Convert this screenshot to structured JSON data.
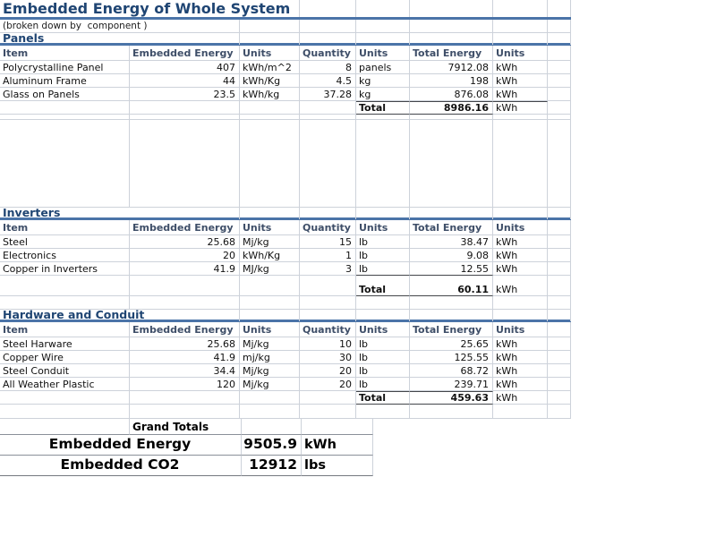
{
  "theme": {
    "title_color": "#1F4573",
    "accent_line_color": "#4B74A8",
    "header_text_color": "#3E4E68",
    "gridline_color": "#CDD2DA"
  },
  "title": "Embedded Energy of Whole System",
  "subtitle": "(broken down by  component )",
  "columns": [
    "Item",
    "Embedded Energy",
    "Units",
    "Quantity",
    "Units",
    "Total Energy",
    "Units"
  ],
  "sections": [
    {
      "name": "Panels",
      "rows": [
        [
          "Polycrystalline Panel",
          "407",
          "kWh/m^2",
          "8",
          "panels",
          "7912.08",
          "kWh"
        ],
        [
          "Aluminum Frame",
          "44",
          "kWh/Kg",
          "4.5",
          "kg",
          "198",
          "kWh"
        ],
        [
          "Glass on Panels",
          "23.5",
          "kWh/kg",
          "37.28",
          "kg",
          "876.08",
          "kWh"
        ]
      ],
      "total": {
        "label": "Total",
        "value": "8986.16",
        "units": "kWh"
      }
    },
    {
      "name": "Inverters",
      "rows": [
        [
          "Steel",
          "25.68",
          "Mj/kg",
          "15",
          "lb",
          "38.47",
          "kWh"
        ],
        [
          "Electronics",
          "20",
          "kWh/Kg",
          "1",
          "lb",
          "9.08",
          "kWh"
        ],
        [
          "Copper in Inverters",
          "41.9",
          "MJ/kg",
          "3",
          "lb",
          "12.55",
          "kWh"
        ]
      ],
      "total": {
        "label": "Total",
        "value": "60.11",
        "units": "kWh"
      }
    },
    {
      "name": "Hardware and Conduit",
      "rows": [
        [
          "Steel Harware",
          "25.68",
          "Mj/kg",
          "10",
          "lb",
          "25.65",
          "kWh"
        ],
        [
          "Copper Wire",
          "41.9",
          "mj/kg",
          "30",
          "lb",
          "125.55",
          "kWh"
        ],
        [
          "Steel Conduit",
          "34.4",
          "Mj/kg",
          "20",
          "lb",
          "68.72",
          "kWh"
        ],
        [
          "All Weather Plastic",
          "120",
          "Mj/kg",
          "20",
          "lb",
          "239.71",
          "kWh"
        ]
      ],
      "total": {
        "label": "Total",
        "value": "459.63",
        "units": "kWh"
      }
    }
  ],
  "grand_totals": {
    "header": "Grand Totals",
    "rows": [
      {
        "label": "Embedded Energy",
        "value": "9505.9",
        "units": "kWh"
      },
      {
        "label": "Embedded CO2",
        "value": "12912",
        "units": "lbs"
      }
    ]
  }
}
